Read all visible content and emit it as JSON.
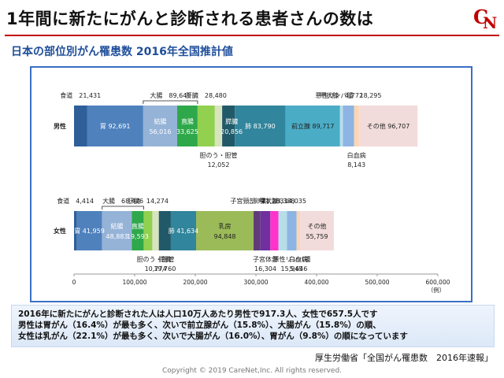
{
  "header": {
    "title": "1年間に新たにがんと診断される患者さんの数は",
    "subtitle": "日本の部位別がん罹患数 2016年全国推計値",
    "logo_text": "CN"
  },
  "note": {
    "lines": [
      "2016年に新たにがんと診断された人は人口10万人あたり男性で917.3人、女性で657.5人です",
      "男性は胃がん（16.4%）が最も多く、次いで前立腺がん（15.8%）、大腸がん（15.8%）の順、",
      "女性は乳がん（22.1%）が最も多く、次いで大腸がん（16.0%）、胃がん（9.8%）の順になっています"
    ]
  },
  "source": "厚生労働省「全国がん罹患数　2016年速報」",
  "copyright": "Copyright © 2019 CareNet,Inc. All rights reserved.",
  "colors": {
    "accent": "#c00000",
    "frame": "#3a6fc4",
    "subtitle": "#1f4e9a"
  },
  "chart_data": {
    "type": "bar",
    "orientation": "horizontal",
    "stacked": true,
    "unit_label": "（例）",
    "xlim": [
      0,
      600000
    ],
    "xticks": [
      "0",
      "100,000",
      "200,000",
      "300,000",
      "400,000",
      "500,000",
      "600,000"
    ],
    "grid": false,
    "categories": [
      "男性",
      "女性"
    ],
    "series": [
      {
        "name": "食道",
        "color": "#2e5f99",
        "values": [
          21431,
          4414
        ]
      },
      {
        "name": "胃",
        "color": "#4f81bd",
        "values": [
          92691,
          41959
        ]
      },
      {
        "name": "結腸",
        "color": "#95b3d7",
        "values": [
          56016,
          48883
        ]
      },
      {
        "name": "直腸",
        "color": "#2ea84a",
        "values": [
          33625,
          19593
        ]
      },
      {
        "name": "肝臓",
        "color": "#92d050",
        "values": [
          28480,
          14274
        ]
      },
      {
        "name": "胆のう・胆管",
        "color": "#d7e4bd",
        "values": [
          12052,
          10774
        ]
      },
      {
        "name": "膵臓",
        "color": "#215968",
        "values": [
          20856,
          19760
        ]
      },
      {
        "name": "肺",
        "color": "#31859c",
        "values": [
          83790,
          41634
        ]
      },
      {
        "name": "乳房",
        "color": "#9bbb59",
        "values": [
          0,
          94848
        ]
      },
      {
        "name": "子宮頸部",
        "color": "#5f3b7a",
        "values": [
          0,
          11283
        ]
      },
      {
        "name": "子宮体部",
        "color": "#7030a0",
        "values": [
          0,
          16304
        ]
      },
      {
        "name": "卵巣",
        "color": "#ff33cc",
        "values": [
          0,
          13388
        ]
      },
      {
        "name": "前立腺",
        "color": "#4bacc6",
        "values": [
          89717,
          0
        ]
      },
      {
        "name": "甲状腺",
        "color": "#b7dee8",
        "values": [
          4772,
          14035
        ]
      },
      {
        "name": "悪性リンパ腫",
        "color": "#8eb4e3",
        "values": [
          18295,
          15945
        ]
      },
      {
        "name": "白血病",
        "color": "#fcd5b5",
        "values": [
          8143,
          5646
        ]
      },
      {
        "name": "その他",
        "color": "#f2dcdb",
        "values": [
          96707,
          55759
        ]
      }
    ],
    "bracket_labels": {
      "male": {
        "text": "大腸",
        "value": "89,641"
      },
      "female": {
        "text": "大腸",
        "value": "68,476"
      }
    },
    "annotations": {
      "male": {
        "食道": {
          "text": "食道",
          "value": "21,431"
        },
        "胃": {
          "text": "胃",
          "value": "92,691"
        },
        "結腸": {
          "text": "結腸",
          "value": "56,016"
        },
        "直腸": {
          "text": "直腸",
          "value": "33,625"
        },
        "肝臓": {
          "text": "肝臓",
          "value": "28,480"
        },
        "胆のう・胆管": {
          "text": "胆のう・胆管",
          "value": "12,052"
        },
        "膵臓": {
          "text": "膵臓",
          "value": "20,856"
        },
        "肺": {
          "text": "肺",
          "value": "83,790"
        },
        "前立腺": {
          "text": "前立腺",
          "value": "89,717"
        },
        "甲状腺": {
          "text": "甲状腺",
          "value": "4,772"
        },
        "悪性リンパ腫": {
          "text": "悪性リンパ腫",
          "value": "18,295"
        },
        "白血病": {
          "text": "白血病",
          "value": "8,143"
        },
        "その他": {
          "text": "その他",
          "value": "96,707"
        }
      },
      "female": {
        "食道": {
          "text": "食道",
          "value": "4,414"
        },
        "胃": {
          "text": "胃",
          "value": "41,959"
        },
        "結腸": {
          "text": "結腸",
          "value": "48,883"
        },
        "直腸": {
          "text": "直腸",
          "value": "19,593"
        },
        "肝臓": {
          "text": "肝臓",
          "value": "14,274"
        },
        "胆のう・胆管": {
          "text": "胆のう・胆管",
          "value": "10,774"
        },
        "膵臓": {
          "text": "膵臓",
          "value": "19,760"
        },
        "肺": {
          "text": "肺",
          "value": "41,634"
        },
        "乳房": {
          "text": "乳房",
          "value": "94,848"
        },
        "子宮頸部": {
          "text": "子宮頸部",
          "value": "11,283"
        },
        "子宮体部": {
          "text": "子宮体部",
          "value": "16,304"
        },
        "卵巣": {
          "text": "卵巣",
          "value": "13,388"
        },
        "甲状腺": {
          "text": "甲状腺",
          "value": "14,035"
        },
        "悪性リンパ腫": {
          "text": "悪性リンパ腫",
          "value": "15,945"
        },
        "白血病": {
          "text": "白血病",
          "value": "5,646"
        },
        "その他": {
          "text": "その他",
          "value": "55,759"
        }
      }
    }
  }
}
